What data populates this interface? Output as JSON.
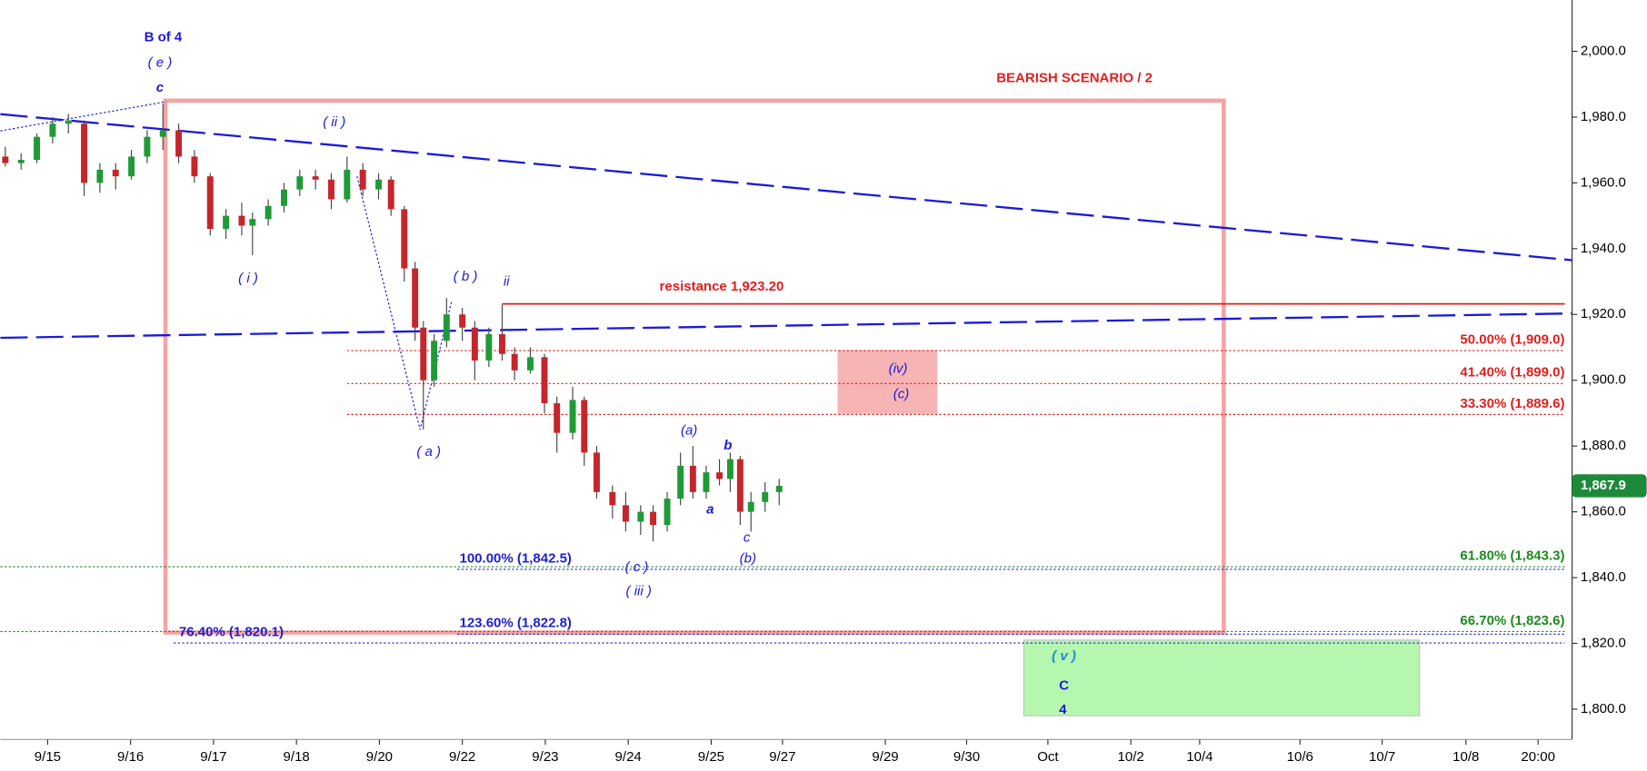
{
  "chart_data": {
    "type": "candlestick",
    "x": [
      -0.51,
      -0.32,
      -0.13,
      0.06,
      0.25,
      0.44,
      0.63,
      0.82,
      1.01,
      1.2,
      1.39,
      1.58,
      1.77,
      1.96,
      2.15,
      2.34,
      2.47,
      2.66,
      2.85,
      3.04,
      3.23,
      3.42,
      3.61,
      3.8,
      3.99,
      4.14,
      4.3,
      4.43,
      4.53,
      4.66,
      4.81,
      5.0,
      5.15,
      5.32,
      5.48,
      5.63,
      5.82,
      5.99,
      6.14,
      6.33,
      6.47,
      6.62,
      6.81,
      6.97,
      7.15,
      7.3,
      7.47,
      7.63,
      7.78,
      7.94,
      8.1,
      8.23,
      8.35,
      8.48,
      8.65,
      8.82
    ],
    "open": [
      1968,
      1966,
      1967,
      1974,
      1978,
      1978,
      1960,
      1964,
      1962,
      1968,
      1974,
      1976,
      1968,
      1962,
      1946,
      1950,
      1947,
      1949,
      1953,
      1958,
      1962,
      1961,
      1955,
      1964,
      1958,
      1961,
      1952,
      1934,
      1916,
      1900,
      1912,
      1920,
      1916,
      1906,
      1914,
      1908,
      1903,
      1907,
      1893,
      1884,
      1894,
      1878,
      1866,
      1862,
      1857,
      1860,
      1856,
      1864,
      1874,
      1866,
      1872,
      1870,
      1876,
      1860,
      1863,
      1866
    ],
    "high": [
      1971,
      1969,
      1975,
      1980,
      1981,
      1979,
      1966,
      1966,
      1970,
      1976,
      1984,
      1978,
      1970,
      1963,
      1952,
      1954,
      1951,
      1955,
      1960,
      1964,
      1964,
      1963,
      1968,
      1966,
      1963,
      1962,
      1953,
      1936,
      1918,
      1914,
      1925,
      1922,
      1918,
      1916,
      1923,
      1910,
      1910,
      1908,
      1895,
      1898,
      1895,
      1880,
      1868,
      1866,
      1862,
      1862,
      1866,
      1878,
      1880,
      1874,
      1876,
      1878,
      1877,
      1866,
      1869,
      1870
    ],
    "low": [
      1965,
      1964,
      1966,
      1972,
      1975,
      1956,
      1957,
      1958,
      1961,
      1966,
      1970,
      1966,
      1960,
      1944,
      1943,
      1944,
      1938,
      1947,
      1951,
      1956,
      1958,
      1952,
      1954,
      1956,
      1955,
      1950,
      1930,
      1912,
      1885,
      1898,
      1910,
      1912,
      1900,
      1904,
      1906,
      1900,
      1902,
      1890,
      1878,
      1882,
      1874,
      1864,
      1858,
      1854,
      1853,
      1851,
      1854,
      1862,
      1864,
      1864,
      1868,
      1866,
      1856,
      1854,
      1860,
      1862
    ],
    "close": [
      1966,
      1967,
      1974,
      1978,
      1979,
      1960,
      1964,
      1962,
      1968,
      1974,
      1976,
      1968,
      1962,
      1946,
      1950,
      1947,
      1949,
      1953,
      1958,
      1962,
      1961,
      1955,
      1964,
      1958,
      1961,
      1952,
      1934,
      1916,
      1900,
      1912,
      1920,
      1916,
      1906,
      1914,
      1908,
      1903,
      1907,
      1893,
      1884,
      1894,
      1878,
      1866,
      1862,
      1857,
      1860,
      1856,
      1864,
      1874,
      1866,
      1872,
      1870,
      1876,
      1860,
      1863,
      1866,
      1867.9
    ],
    "up_color": "#1f9a36",
    "down_color": "#c4262b",
    "xlim": [
      -0.57,
      18.38
    ],
    "xticks": [
      {
        "value": 0,
        "label": "9/15"
      },
      {
        "value": 1,
        "label": "9/16"
      },
      {
        "value": 2,
        "label": "9/17"
      },
      {
        "value": 3,
        "label": "9/18"
      },
      {
        "value": 4,
        "label": "9/20"
      },
      {
        "value": 5,
        "label": "9/22"
      },
      {
        "value": 6,
        "label": "9/23"
      },
      {
        "value": 7,
        "label": "9/24"
      },
      {
        "value": 8,
        "label": "9/25"
      },
      {
        "value": 8.86,
        "label": "9/27"
      },
      {
        "value": 10.1,
        "label": "9/29"
      },
      {
        "value": 11.08,
        "label": "9/30"
      },
      {
        "value": 12.06,
        "label": "Oct"
      },
      {
        "value": 13.06,
        "label": "10/2"
      },
      {
        "value": 13.89,
        "label": "10/4"
      },
      {
        "value": 15.1,
        "label": "10/6"
      },
      {
        "value": 16.09,
        "label": "10/7"
      },
      {
        "value": 17.1,
        "label": "10/8"
      },
      {
        "value": 17.97,
        "label": "20:00"
      }
    ],
    "ylim": [
      1781.2,
      2015.6
    ],
    "yticks": [
      {
        "value": 1800,
        "label": "1,800.0"
      },
      {
        "value": 1820,
        "label": "1,820.0"
      },
      {
        "value": 1840,
        "label": "1,840.0"
      },
      {
        "value": 1860,
        "label": "1,860.0"
      },
      {
        "value": 1880,
        "label": "1,880.0"
      },
      {
        "value": 1900,
        "label": "1,900.0"
      },
      {
        "value": 1920,
        "label": "1,920.0"
      },
      {
        "value": 1940,
        "label": "1,940.0"
      },
      {
        "value": 1960,
        "label": "1,960.0"
      },
      {
        "value": 1980,
        "label": "1,980.0"
      },
      {
        "value": 2000,
        "label": "2,000.0"
      }
    ],
    "levels": [
      {
        "value": 1923.2,
        "label": "resistance 1,923.20",
        "color": "#e0201e",
        "style": "solid",
        "from": 5.48
      },
      {
        "value": 1909.0,
        "label": "50.00% (1,909.0)",
        "color": "#e0201e",
        "style": "dotted",
        "from": 3.61
      },
      {
        "value": 1899.0,
        "label": "41.40% (1,899.0)",
        "color": "#e0201e",
        "style": "dotted",
        "from": 3.61
      },
      {
        "value": 1889.6,
        "label": "33.30% (1,889.6)",
        "color": "#e0201e",
        "style": "dotted",
        "from": 3.61
      },
      {
        "value": 1843.3,
        "label": "61.80% (1,843.3)",
        "color": "#1f8a1f",
        "style": "dotted",
        "from": -0.57
      },
      {
        "value": 1823.6,
        "label": "66.70% (1,823.6)",
        "color": "#1f8a1f",
        "style": "dotted",
        "from": -0.57
      },
      {
        "value": 1842.5,
        "label": "100.00% (1,842.5)",
        "color": "#2020d0",
        "style": "dotted",
        "from": 4.94
      },
      {
        "value": 1822.8,
        "label": "123.60% (1,822.8)",
        "color": "#2020d0",
        "style": "dotted",
        "from": 4.94
      },
      {
        "value": 1820.1,
        "label": "76.40% (1,820.1)",
        "color": "#2020d0",
        "style": "dotted",
        "from": 1.52
      }
    ],
    "trendlines": [
      {
        "x": [
          -0.57,
          18.38
        ],
        "y": [
          1980.9,
          1936.5
        ],
        "style": "dashed"
      },
      {
        "x": [
          -0.57,
          18.38
        ],
        "y": [
          1912.9,
          1920.3
        ],
        "style": "dashed"
      },
      {
        "x": [
          -0.57,
          1.43
        ],
        "y": [
          1975.8,
          1984.7
        ],
        "style": "dotted"
      },
      {
        "x": [
          3.73,
          4.49,
          4.87
        ],
        "y": [
          1962,
          1885,
          1924
        ],
        "style": "dotted"
      }
    ],
    "zones": [
      {
        "x": [
          1.42,
          14.18
        ],
        "y": [
          1823.3,
          1985
        ],
        "fill": "none",
        "stroke": "#f5a3a3"
      },
      {
        "x": [
          9.53,
          10.72
        ],
        "y": [
          1890,
          1909
        ],
        "fill": "#f7b4b4",
        "stroke": "#f7b4b4"
      },
      {
        "x": [
          11.77,
          16.54
        ],
        "y": [
          1798,
          1821
        ],
        "fill": "#b5f7ae",
        "stroke": "#b8c8b8"
      }
    ],
    "annotations": [
      "B of 4",
      "( e )",
      "c",
      "( ii )",
      "( i )",
      "( b )",
      "ii",
      "( a )",
      "(a)",
      "b",
      "a",
      "c",
      "(b)",
      "( c )",
      "( iii )",
      "(iv)",
      "(c)",
      "( v )",
      "C",
      "4",
      "BEARISH SCENARIO / 2"
    ],
    "last_price": {
      "value": 1867.9,
      "label": "1,867.9",
      "color": "#1d8a3a"
    }
  }
}
